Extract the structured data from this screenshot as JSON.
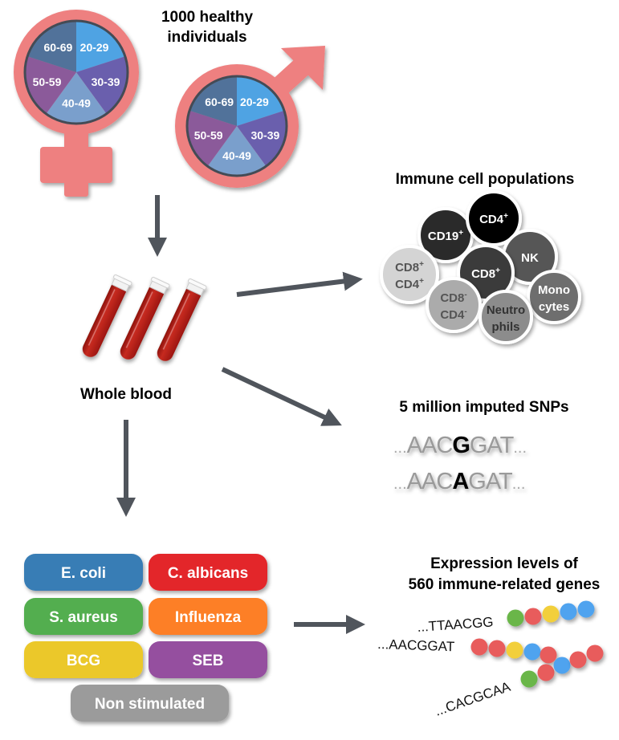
{
  "cohort": {
    "title_line1": "1000 healthy",
    "title_line2": "individuals",
    "age_groups": [
      "20-29",
      "30-39",
      "40-49",
      "50-59",
      "60-69"
    ],
    "age_colors": [
      "#4fa3e3",
      "#6a5fad",
      "#7a9fcc",
      "#8b5a9a",
      "#51729a"
    ],
    "symbol_color": "#ee8080",
    "symbols": [
      "female-symbol",
      "male-symbol"
    ]
  },
  "blood": {
    "label": "Whole blood",
    "tube_color": "#b81e16"
  },
  "immune": {
    "title": "Immune cell populations",
    "cells": [
      {
        "line1": "CD19",
        "sup1": "+",
        "line2": "",
        "sup2": "",
        "fill": "#2b2b2b",
        "text": "#ffffff"
      },
      {
        "line1": "CD4",
        "sup1": "+",
        "line2": "",
        "sup2": "",
        "fill": "#050505",
        "text": "#ffffff"
      },
      {
        "line1": "NK",
        "sup1": "",
        "line2": "",
        "sup2": "",
        "fill": "#575757",
        "text": "#ffffff"
      },
      {
        "line1": "CD8",
        "sup1": "+",
        "line2": "CD4",
        "sup2": "+",
        "fill": "#d4d4d4",
        "text": "#555555"
      },
      {
        "line1": "CD8",
        "sup1": "+",
        "line2": "",
        "sup2": "",
        "fill": "#3a3a3a",
        "text": "#ffffff"
      },
      {
        "line1": "CD8",
        "sup1": "-",
        "line2": "CD4",
        "sup2": "-",
        "fill": "#ababab",
        "text": "#555555"
      },
      {
        "line1": "Mono",
        "sup1": "",
        "line2": "cytes",
        "sup2": "",
        "fill": "#6e6e6e",
        "text": "#ffffff"
      },
      {
        "line1": "Neutro",
        "sup1": "",
        "line2": "phils",
        "sup2": "",
        "fill": "#8c8c8c",
        "text": "#333333"
      }
    ]
  },
  "snps": {
    "title": "5 million imputed SNPs",
    "rows": [
      {
        "prefix": "AAC",
        "variant": "G",
        "suffix": "GAT",
        "dots": "..."
      },
      {
        "prefix": "AAC",
        "variant": "A",
        "suffix": "GAT",
        "dots": "..."
      }
    ]
  },
  "stimuli": [
    {
      "label": "E. coli",
      "color": "#397db5"
    },
    {
      "label": "C. albicans",
      "color": "#e3262b"
    },
    {
      "label": "S. aureus",
      "color": "#52ae4f"
    },
    {
      "label": "Influenza",
      "color": "#fd7f26"
    },
    {
      "label": "BCG",
      "color": "#ebc829"
    },
    {
      "label": "SEB",
      "color": "#954f9f"
    },
    {
      "label": "Non stimulated",
      "color": "#9b9b9b"
    }
  ],
  "expression": {
    "title_line1": "Expression levels of",
    "title_line2": "560 immune-related genes",
    "rows": [
      {
        "sequence": "...TTAACGG",
        "beads": [
          "green",
          "red",
          "yellow",
          "blue",
          "blue"
        ]
      },
      {
        "sequence": "...AACGGAT",
        "beads": [
          "red",
          "red",
          "yellow",
          "blue",
          "red"
        ]
      },
      {
        "sequence": "...CACGCAA",
        "beads": [
          "green",
          "red",
          "blue",
          "red",
          "red"
        ]
      }
    ],
    "bead_colors": {
      "green": "#6ab648",
      "red": "#e85c5c",
      "yellow": "#f2cf3a",
      "blue": "#4fa3ef"
    }
  },
  "arrow_color": "#50555c"
}
